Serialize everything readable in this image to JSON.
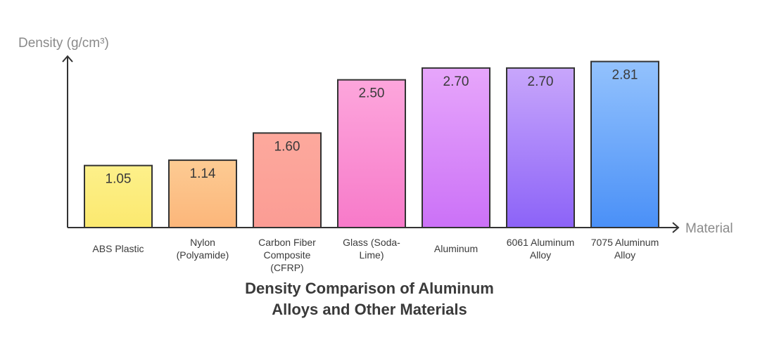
{
  "chart_data": {
    "type": "bar",
    "title_lines": [
      "Density Comparison of Aluminum",
      "Alloys and Other Materials"
    ],
    "xlabel": "Material",
    "ylabel": "Density (g/cm³)",
    "ylim": [
      0,
      2.9
    ],
    "grid": false,
    "value_labels": [
      "1.05",
      "1.14",
      "1.60",
      "2.50",
      "2.70",
      "2.70",
      "2.81"
    ],
    "categories": [
      {
        "name": "ABS Plastic",
        "lines": [
          "ABS Plastic"
        ]
      },
      {
        "name": "Nylon (Polyamide)",
        "lines": [
          "Nylon",
          "(Polyamide)"
        ]
      },
      {
        "name": "Carbon Fiber Composite (CFRP)",
        "lines": [
          "Carbon Fiber",
          "Composite",
          "(CFRP)"
        ]
      },
      {
        "name": "Glass (Soda-Lime)",
        "lines": [
          "Glass (Soda-",
          "Lime)"
        ]
      },
      {
        "name": "Aluminum",
        "lines": [
          "Aluminum"
        ]
      },
      {
        "name": "6061 Aluminum Alloy",
        "lines": [
          "6061 Aluminum",
          "Alloy"
        ]
      },
      {
        "name": "7075 Aluminum Alloy",
        "lines": [
          "7075 Aluminum",
          "Alloy"
        ]
      }
    ],
    "values": [
      1.05,
      1.14,
      1.6,
      2.5,
      2.7,
      2.7,
      2.81
    ],
    "colors": [
      {
        "top": "#fdf08a",
        "bottom": "#fbe96f"
      },
      {
        "top": "#fdcb93",
        "bottom": "#fcb67a"
      },
      {
        "top": "#fda99d",
        "bottom": "#fb9c94"
      },
      {
        "top": "#fda6dc",
        "bottom": "#f77ac9"
      },
      {
        "top": "#e7a6fb",
        "bottom": "#cb71f7"
      },
      {
        "top": "#c8a6fb",
        "bottom": "#8c63f8"
      },
      {
        "top": "#93c2fd",
        "bottom": "#4a90f7"
      }
    ]
  }
}
